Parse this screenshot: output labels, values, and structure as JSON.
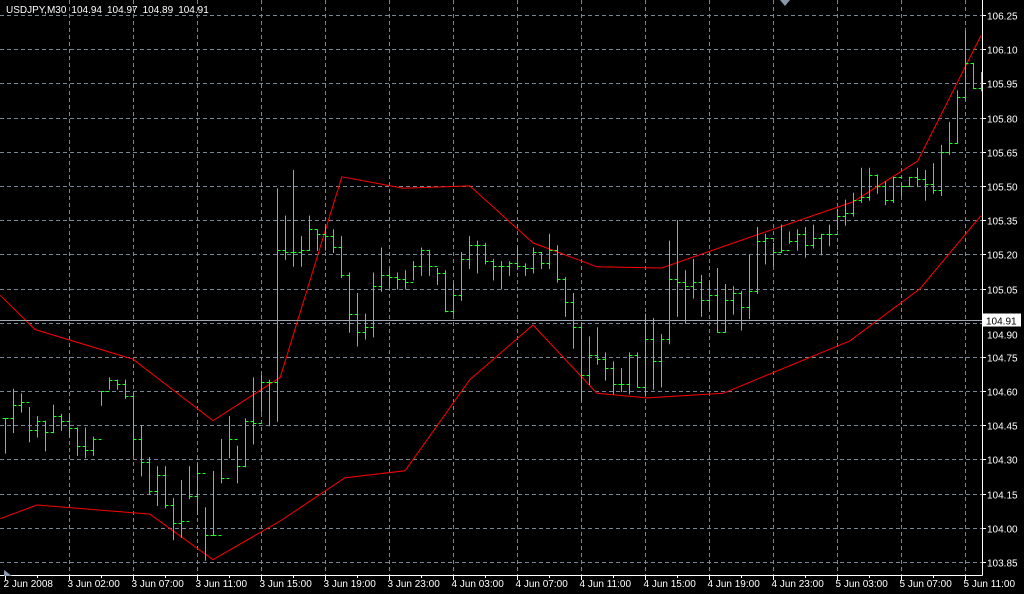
{
  "header": {
    "symbol": "USDJPY,M30",
    "open": "104.94",
    "high": "104.97",
    "low": "104.89",
    "close": "104.91"
  },
  "colors": {
    "background": "#000000",
    "grid": "#7a8799",
    "bars": "#1eff1e",
    "envelope": "#ff0000",
    "axis": "#ffffff",
    "price_line": "#a0a8b4"
  },
  "chart_data": {
    "type": "ohlc",
    "symbol": "USDJPY",
    "timeframe": "M30",
    "grid": true,
    "ylim": [
      103.85,
      106.25
    ],
    "y_ticks": [
      "106.25",
      "106.10",
      "105.95",
      "105.80",
      "105.65",
      "105.50",
      "105.35",
      "105.20",
      "105.05",
      "104.90",
      "104.75",
      "104.60",
      "104.45",
      "104.30",
      "104.15",
      "104.00",
      "103.85"
    ],
    "x_tick_labels": [
      "2 Jun 2008",
      "3 Jun 02:00",
      "3 Jun 07:00",
      "3 Jun 11:00",
      "3 Jun 15:00",
      "3 Jun 19:00",
      "3 Jun 23:00",
      "4 Jun 03:00",
      "4 Jun 07:00",
      "4 Jun 11:00",
      "4 Jun 15:00",
      "4 Jun 19:00",
      "4 Jun 23:00",
      "5 Jun 03:00",
      "5 Jun 07:00",
      "5 Jun 11:00"
    ],
    "current_price": "104.91",
    "bars": {
      "high": [
        104.48,
        104.61,
        104.59,
        104.53,
        104.49,
        104.47,
        104.54,
        104.5,
        104.5,
        104.44,
        104.44,
        104.4,
        104.6,
        104.66,
        104.65,
        104.65,
        104.59,
        104.45,
        104.31,
        104.27,
        104.27,
        104.13,
        104.21,
        104.27,
        104.28,
        104.09,
        104.25,
        104.39,
        104.49,
        104.36,
        104.48,
        104.66,
        104.67,
        104.65,
        105.49,
        105.37,
        105.57,
        105.28,
        105.37,
        105.31,
        105.32,
        105.31,
        105.28,
        105.12,
        105.03,
        104.94,
        105.12,
        105.23,
        105.14,
        105.12,
        105.13,
        105.17,
        105.23,
        105.22,
        105.14,
        105.13,
        105.07,
        105.21,
        105.28,
        105.26,
        105.25,
        105.18,
        105.17,
        105.17,
        105.23,
        105.16,
        105.23,
        105.21,
        105.29,
        105.24,
        105.1,
        105.03,
        104.9,
        104.84,
        104.88,
        104.77,
        104.73,
        104.7,
        104.77,
        104.77,
        104.94,
        104.92,
        104.85,
        105.26,
        105.35,
        105.13,
        105.18,
        105.11,
        105.08,
        105.14,
        105.07,
        105.06,
        105.04,
        105.2,
        105.32,
        105.29,
        105.25,
        105.33,
        105.3,
        105.31,
        105.32,
        105.33,
        105.29,
        105.33,
        105.4,
        105.44,
        105.47,
        105.58,
        105.58,
        105.55,
        105.52,
        105.54,
        105.51,
        105.54,
        105.58,
        105.57,
        105.6,
        105.68,
        105.78,
        105.92,
        106.18,
        106.04,
        106.0
      ],
      "low": [
        104.33,
        104.42,
        104.51,
        104.38,
        104.4,
        104.34,
        104.42,
        104.43,
        104.4,
        104.32,
        104.31,
        104.32,
        104.54,
        104.61,
        104.61,
        104.57,
        104.32,
        104.23,
        104.15,
        104.1,
        104.09,
        103.95,
        103.96,
        104.13,
        104.06,
        103.86,
        103.97,
        104.2,
        104.31,
        104.2,
        104.27,
        104.37,
        104.51,
        104.45,
        104.47,
        105.18,
        105.15,
        105.15,
        105.22,
        105.22,
        105.22,
        105.21,
        105.1,
        104.86,
        104.8,
        104.83,
        104.84,
        105.04,
        105.06,
        105.05,
        105.05,
        105.09,
        105.11,
        105.11,
        105.07,
        104.95,
        104.94,
        105.0,
        105.14,
        105.12,
        105.16,
        105.09,
        105.05,
        105.11,
        105.14,
        105.11,
        105.12,
        105.14,
        105.14,
        105.08,
        104.93,
        104.79,
        104.56,
        104.63,
        104.72,
        104.65,
        104.59,
        104.6,
        104.59,
        104.62,
        104.58,
        104.61,
        104.62,
        104.81,
        104.93,
        104.9,
        105.01,
        104.93,
        104.96,
        104.86,
        104.86,
        104.94,
        104.87,
        104.92,
        105.03,
        105.16,
        105.15,
        105.21,
        105.25,
        105.22,
        105.19,
        105.23,
        105.2,
        105.24,
        105.31,
        105.33,
        105.37,
        105.43,
        105.44,
        105.47,
        105.42,
        105.43,
        105.46,
        105.5,
        105.5,
        105.44,
        105.47,
        105.46,
        105.64,
        105.69,
        105.88,
        105.93,
        105.92
      ],
      "close": [
        104.48,
        104.54,
        104.55,
        104.43,
        104.47,
        104.42,
        104.49,
        104.47,
        104.44,
        104.36,
        104.34,
        104.39,
        104.6,
        104.65,
        104.63,
        104.58,
        104.39,
        104.29,
        104.16,
        104.23,
        104.1,
        104.02,
        104.03,
        104.14,
        104.24,
        103.97,
        103.97,
        104.22,
        104.39,
        104.27,
        104.47,
        104.46,
        104.64,
        104.64,
        105.22,
        105.21,
        105.21,
        105.22,
        105.31,
        105.29,
        105.28,
        105.23,
        105.11,
        104.94,
        104.86,
        104.88,
        105.06,
        105.11,
        105.1,
        105.09,
        105.08,
        105.15,
        105.22,
        105.15,
        105.12,
        104.95,
        105.02,
        105.18,
        105.24,
        105.24,
        105.17,
        105.15,
        105.15,
        105.16,
        105.15,
        105.14,
        105.21,
        105.16,
        105.22,
        105.09,
        104.99,
        104.88,
        104.67,
        104.76,
        104.74,
        104.7,
        104.63,
        104.63,
        104.76,
        104.62,
        104.83,
        104.73,
        104.83,
        105.09,
        105.08,
        105.06,
        105.08,
        105.0,
        105.02,
        104.86,
        105.0,
        105.03,
        104.97,
        105.04,
        105.26,
        105.27,
        105.21,
        105.22,
        105.26,
        105.29,
        105.24,
        105.27,
        105.29,
        105.29,
        105.37,
        105.38,
        105.44,
        105.45,
        105.55,
        105.5,
        105.44,
        105.54,
        105.5,
        105.54,
        105.53,
        105.51,
        105.48,
        105.65,
        105.69,
        105.89,
        106.04,
        105.93,
        105.95
      ]
    },
    "envelope_upper": [
      [
        -0.6,
        105.02
      ],
      [
        3.75,
        104.87
      ],
      [
        16,
        104.74
      ],
      [
        26,
        104.47
      ],
      [
        34.4,
        104.66
      ],
      [
        42.1,
        105.54
      ],
      [
        49.75,
        105.49
      ],
      [
        58.1,
        105.5
      ],
      [
        66,
        105.25
      ],
      [
        74,
        105.145
      ],
      [
        82.1,
        105.14
      ],
      [
        91.9,
        105.26
      ],
      [
        106,
        105.43
      ],
      [
        114.1,
        105.61
      ],
      [
        122,
        106.16
      ]
    ],
    "envelope_lower": [
      [
        -0.6,
        104.04
      ],
      [
        4,
        104.1
      ],
      [
        18.1,
        104.06
      ],
      [
        26,
        103.86
      ],
      [
        34.4,
        104.03
      ],
      [
        42.5,
        104.22
      ],
      [
        50,
        104.25
      ],
      [
        58.1,
        104.65
      ],
      [
        66,
        104.89
      ],
      [
        74,
        104.59
      ],
      [
        80.25,
        104.57
      ],
      [
        89.75,
        104.59
      ],
      [
        105.6,
        104.82
      ],
      [
        114.4,
        105.05
      ],
      [
        122,
        105.37
      ]
    ]
  }
}
